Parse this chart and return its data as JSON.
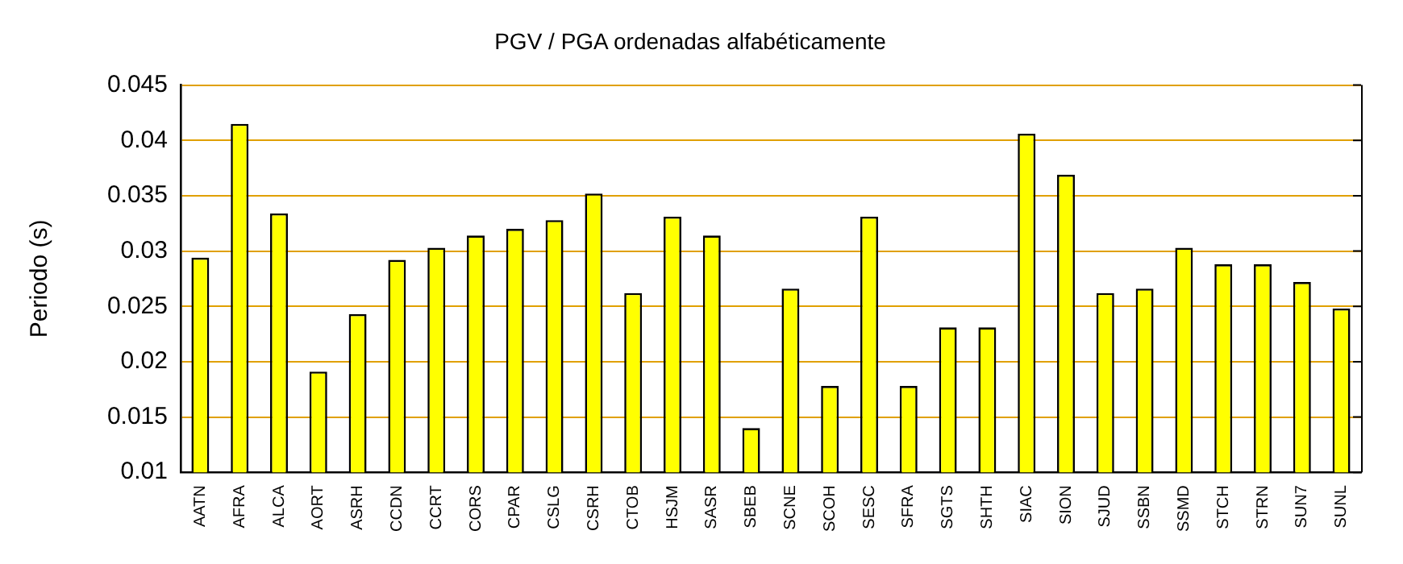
{
  "chart_data": {
    "type": "bar",
    "title": "PGV / PGA ordenadas alfabéticamente",
    "ylabel": "Periodo (s)",
    "categories": [
      "AATN",
      "AFRA",
      "ALCA",
      "AORT",
      "ASRH",
      "CCDN",
      "CCRT",
      "CORS",
      "CPAR",
      "CSLG",
      "CSRH",
      "CTOB",
      "HSJM",
      "SASR",
      "SBEB",
      "SCNE",
      "SCOH",
      "SESC",
      "SFRA",
      "SGTS",
      "SHTH",
      "SIAC",
      "SION",
      "SJUD",
      "SSBN",
      "SSMD",
      "STCH",
      "STRN",
      "SUN7",
      "SUNL"
    ],
    "values": [
      0.0294,
      0.0415,
      0.0334,
      0.0191,
      0.0243,
      0.0292,
      0.0303,
      0.0314,
      0.032,
      0.0328,
      0.0352,
      0.0262,
      0.0331,
      0.0314,
      0.014,
      0.0266,
      0.0178,
      0.0331,
      0.0178,
      0.0231,
      0.0231,
      0.0406,
      0.0369,
      0.0262,
      0.0266,
      0.0303,
      0.0288,
      0.0288,
      0.0272,
      0.0248
    ],
    "color": "#ffff00",
    "ylim": [
      0.01,
      0.045
    ],
    "yticks": [
      0.01,
      0.015,
      0.02,
      0.025,
      0.03,
      0.035,
      0.04,
      0.045
    ],
    "grid": "y",
    "legend": false
  }
}
